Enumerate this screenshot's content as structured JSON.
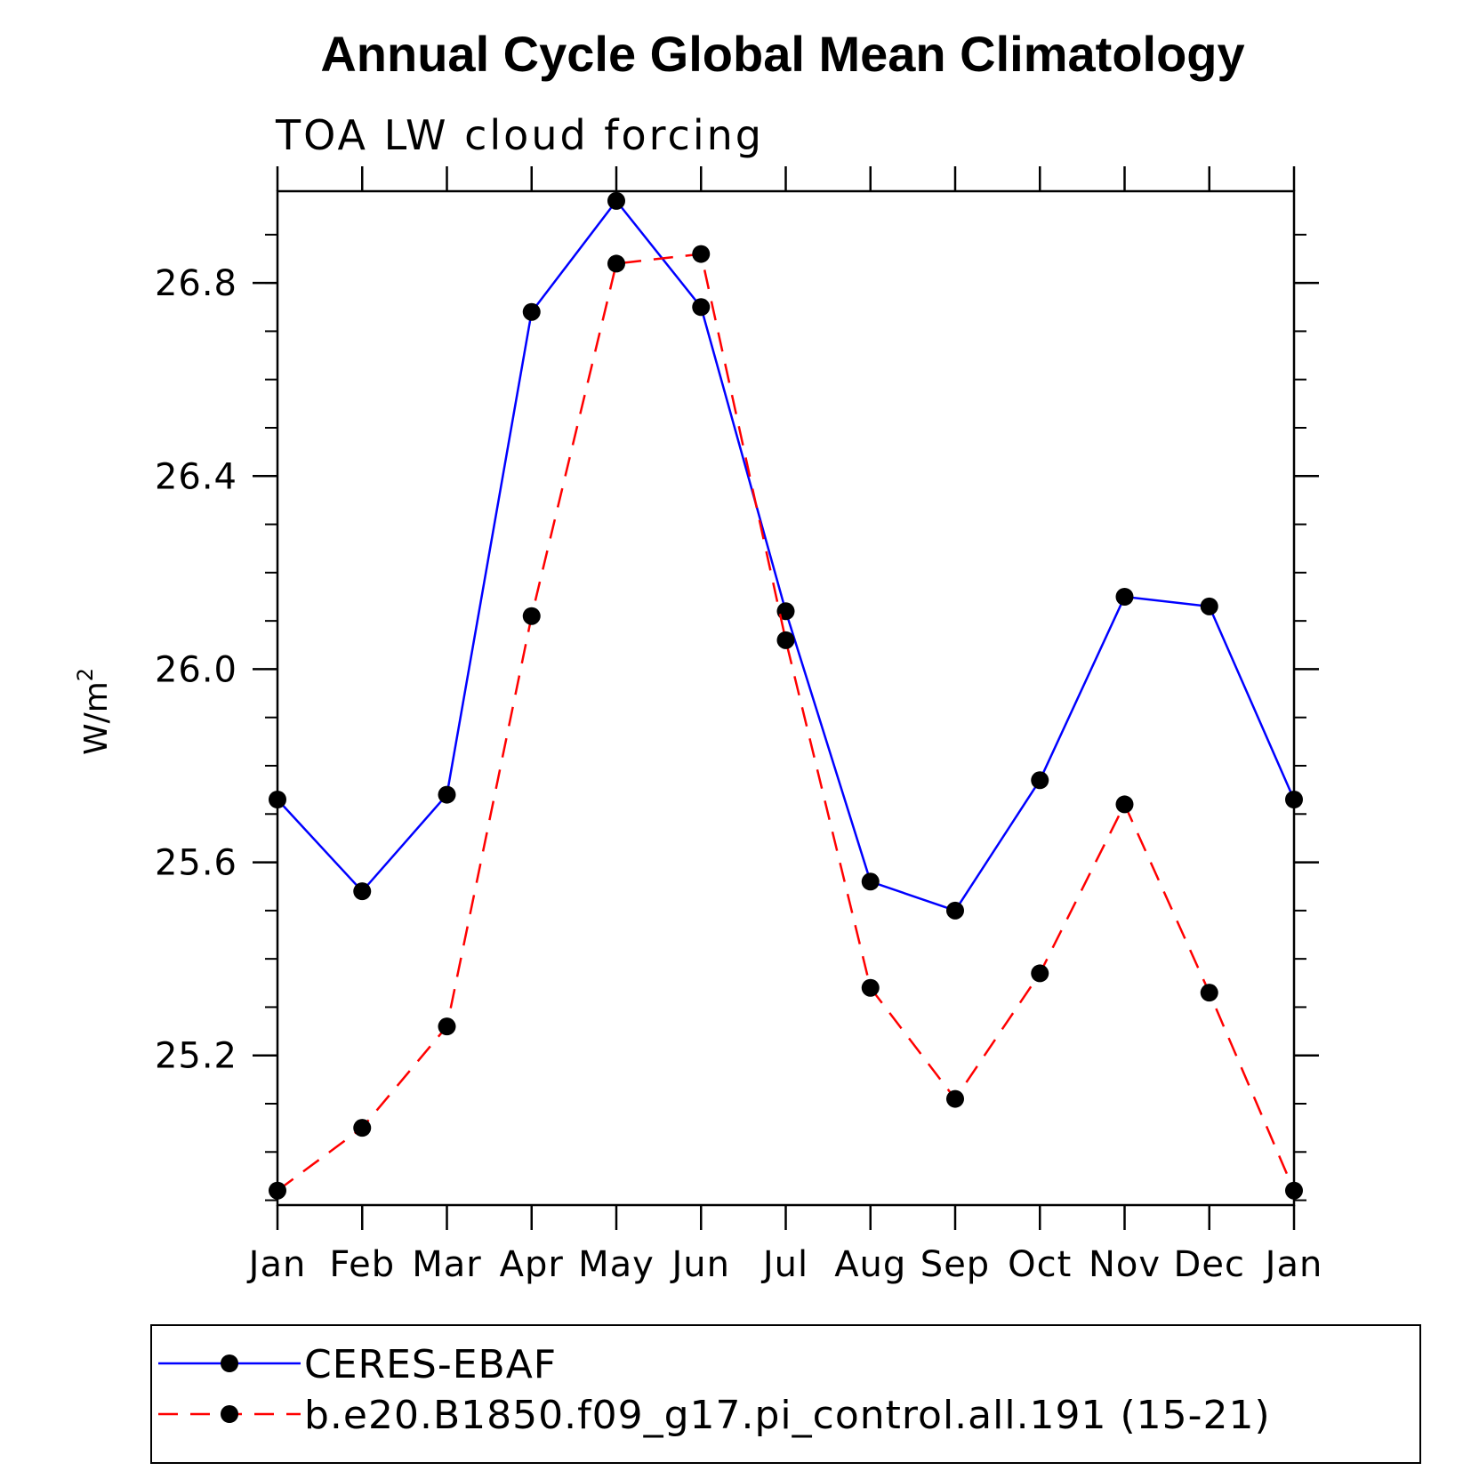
{
  "chart_data": {
    "type": "line",
    "title": "Annual Cycle Global Mean Climatology",
    "subtitle": "TOA LW cloud forcing",
    "ylabel": "W/m",
    "ylabel_superscript": "2",
    "xlabel": "",
    "categories": [
      "Jan",
      "Feb",
      "Mar",
      "Apr",
      "May",
      "Jun",
      "Jul",
      "Aug",
      "Sep",
      "Oct",
      "Nov",
      "Dec",
      "Jan"
    ],
    "ylim": [
      24.89,
      26.99
    ],
    "yticks": [
      25.2,
      25.6,
      26.0,
      26.4,
      26.8
    ],
    "ytick_labels": [
      "25.2",
      "25.6",
      "26.0",
      "26.4",
      "26.8"
    ],
    "grid": false,
    "legend_position": "bottom",
    "series": [
      {
        "name": "CERES-EBAF",
        "color": "#0000ff",
        "line_style": "solid",
        "marker": "filled-circle",
        "values": [
          25.73,
          25.54,
          25.74,
          26.74,
          26.97,
          26.75,
          26.12,
          25.56,
          25.5,
          25.77,
          26.15,
          26.13,
          25.73
        ]
      },
      {
        "name": "b.e20.B1850.f09_g17.pi_control.all.191 (15-21)",
        "color": "#ff0000",
        "line_style": "dashed",
        "marker": "filled-circle",
        "values": [
          24.92,
          25.05,
          25.26,
          26.11,
          26.84,
          26.86,
          26.06,
          25.34,
          25.11,
          25.37,
          25.72,
          25.33,
          24.92
        ]
      }
    ]
  }
}
